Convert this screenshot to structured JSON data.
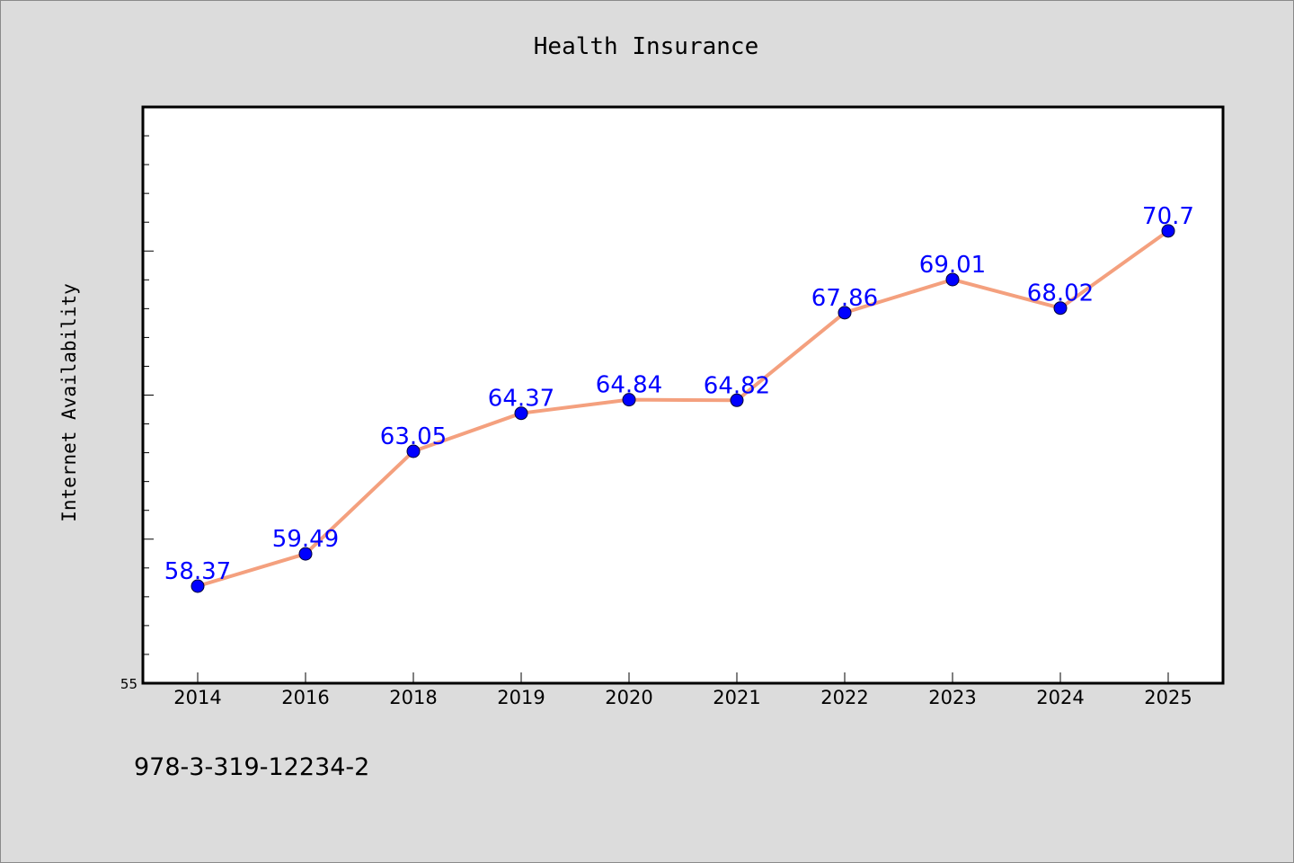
{
  "chart_data": {
    "type": "line",
    "title": "Health Insurance",
    "ylabel": "Internet Availability",
    "xlabel": "",
    "categories": [
      "2014",
      "2016",
      "2018",
      "2019",
      "2020",
      "2021",
      "2022",
      "2023",
      "2024",
      "2025"
    ],
    "series": [
      {
        "values": [
          58.37,
          59.49,
          63.05,
          64.37,
          64.84,
          64.82,
          67.86,
          69.01,
          68.02,
          70.7
        ],
        "data_labels": [
          "58.37",
          "59.49",
          "63.05",
          "64.37",
          "64.84",
          "64.82",
          "67.86",
          "69.01",
          "68.02",
          "70.7"
        ]
      }
    ],
    "ylim": [
      55,
      75
    ],
    "y_tick_labels": [
      "55"
    ],
    "grid": false,
    "legend": "none",
    "colors": {
      "line": "#f4a07e",
      "marker": "#0000ff",
      "label": "#0000ff"
    }
  },
  "footer": {
    "isbn": "978-3-319-12234-2"
  }
}
